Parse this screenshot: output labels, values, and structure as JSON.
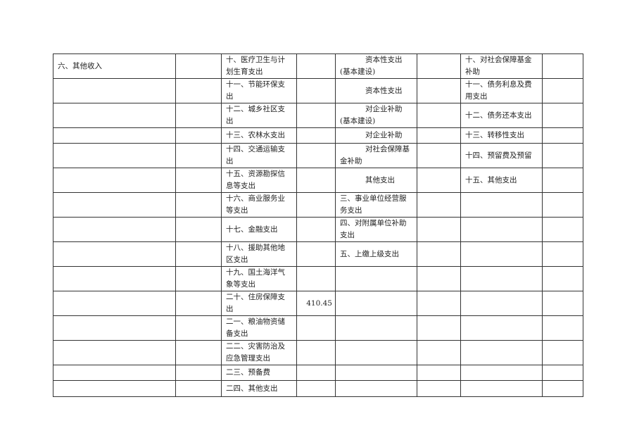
{
  "rows": [
    {
      "h": 35,
      "c": [
        "六、其他收入",
        "",
        "十、医疗卫生与计划生育支出",
        "",
        "资本性支出(基本建设)",
        "",
        "十、对社会保障基金补助",
        ""
      ]
    },
    {
      "h": 35,
      "c": [
        "",
        "",
        "十一、节能环保支出",
        "",
        "资本性支出",
        "",
        "十一、债务利息及费用支出",
        ""
      ]
    },
    {
      "h": 35,
      "c": [
        "",
        "",
        "十二、城乡社区支出",
        "",
        "对企业补助(基本建设)",
        "",
        "十二、债务还本支出",
        ""
      ]
    },
    {
      "h": 22,
      "c": [
        "",
        "",
        "十三、农林水支出",
        "",
        "对企业补助",
        "",
        "十三、转移性支出",
        ""
      ]
    },
    {
      "h": 35,
      "c": [
        "",
        "",
        "十四、交通运输支出",
        "",
        "对社会保障基金补助",
        "",
        "十四、预留费及预留",
        ""
      ]
    },
    {
      "h": 35,
      "c": [
        "",
        "",
        "十五、资源勘探信息等支出",
        "",
        "其他支出",
        "",
        "十五、其他支出",
        ""
      ]
    },
    {
      "h": 34,
      "c": [
        "",
        "",
        "十六、商业服务业等支出",
        "",
        "三、事业单位经营服务支出",
        "",
        "",
        ""
      ]
    },
    {
      "h": 35,
      "c": [
        "",
        "",
        "十七、金融支出",
        "",
        "四、对附属单位补助支出",
        "",
        "",
        ""
      ]
    },
    {
      "h": 34,
      "c": [
        "",
        "",
        "十八、援助其他地区支出",
        "",
        "五、上缴上级支出",
        "",
        "",
        ""
      ]
    },
    {
      "h": 35,
      "c": [
        "",
        "",
        "十九、国土海洋气象等支出",
        "",
        "",
        "",
        "",
        ""
      ]
    },
    {
      "h": 22,
      "c": [
        "",
        "",
        "二十、住房保障支出",
        "410.45",
        "",
        "",
        "",
        ""
      ]
    },
    {
      "h": 35,
      "c": [
        "",
        "",
        "二一、粮油物资储备支出",
        "",
        "",
        "",
        "",
        ""
      ]
    },
    {
      "h": 34,
      "c": [
        "",
        "",
        "二二、灾害防治及应急管理支出",
        "",
        "",
        "",
        "",
        ""
      ]
    },
    {
      "h": 22,
      "c": [
        "",
        "",
        "二三、预备费",
        "",
        "",
        "",
        "",
        ""
      ]
    },
    {
      "h": 23,
      "c": [
        "",
        "",
        "二四、其他支出",
        "",
        "",
        "",
        "",
        ""
      ]
    }
  ]
}
